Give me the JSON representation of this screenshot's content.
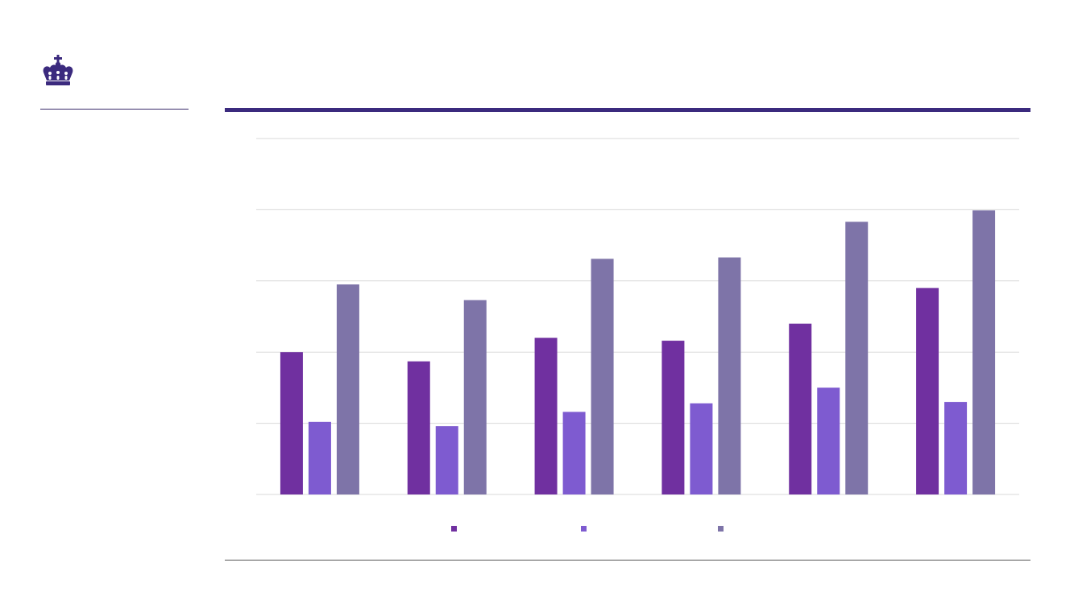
{
  "theme": {
    "brand_color": "#3b2a7e",
    "rule_color": "#3b2a7e",
    "grid_color": "#d9d9d9"
  },
  "logo": {
    "icon": "crown-icon"
  },
  "chart_data": {
    "type": "bar",
    "categories": [
      "",
      "",
      "",
      "",
      "",
      ""
    ],
    "series": [
      {
        "values": [
          2.0,
          1.87,
          2.2,
          2.16,
          2.4,
          2.9
        ],
        "color": "#7030a0"
      },
      {
        "values": [
          1.02,
          0.96,
          1.16,
          1.28,
          1.5,
          1.3
        ],
        "color": "#7e5bd0"
      },
      {
        "values": [
          2.95,
          2.73,
          3.31,
          3.33,
          3.83,
          3.99
        ],
        "color": "#7e74a8"
      }
    ],
    "ylim": [
      0,
      5
    ],
    "grid": true,
    "legend": "bottom",
    "title": "",
    "xlabel": "",
    "ylabel": ""
  }
}
